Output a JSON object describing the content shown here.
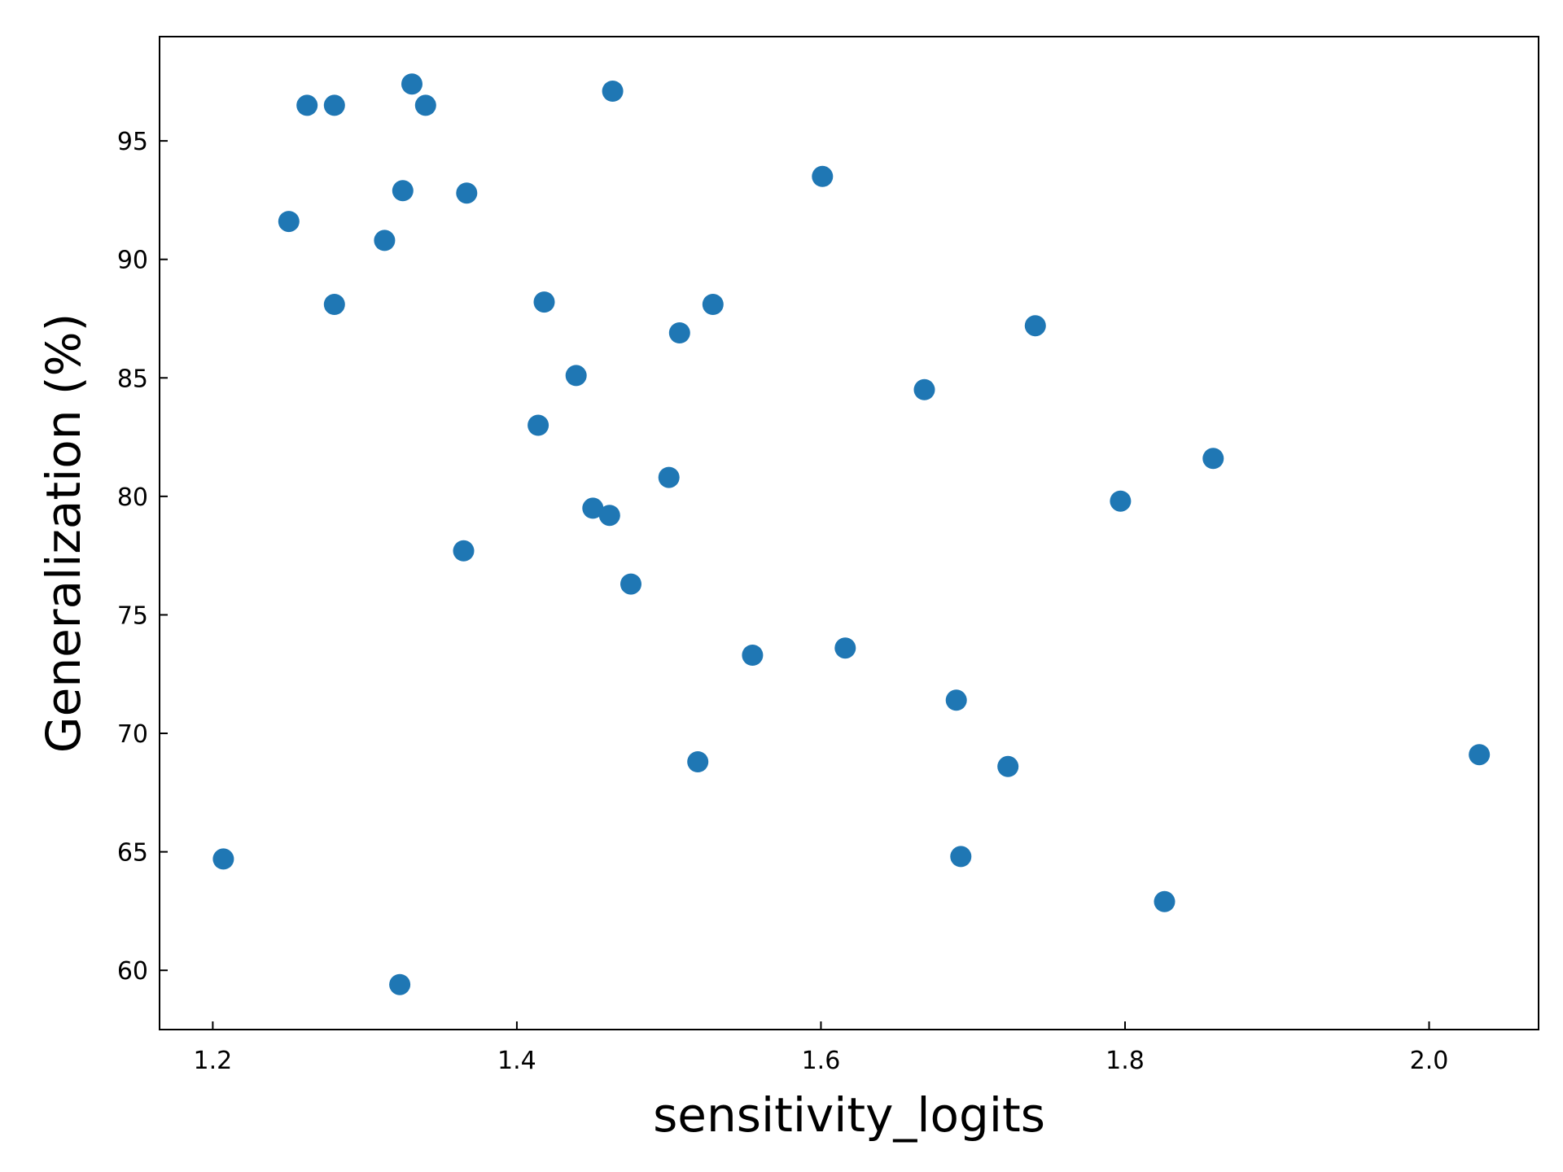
{
  "chart_data": {
    "type": "scatter",
    "xlabel": "sensitivity_logits",
    "ylabel": "Generalization (%)",
    "xlim": [
      1.165,
      2.072
    ],
    "ylim": [
      57.5,
      99.4
    ],
    "xticks": [
      1.2,
      1.4,
      1.6,
      1.8,
      2.0
    ],
    "xtick_labels": [
      "1.2",
      "1.4",
      "1.6",
      "1.8",
      "2.0"
    ],
    "yticks": [
      60,
      65,
      70,
      75,
      80,
      85,
      90,
      95
    ],
    "ytick_labels": [
      "60",
      "65",
      "70",
      "75",
      "80",
      "85",
      "90",
      "95"
    ],
    "grid": false,
    "marker_color": "#1f77b4",
    "series": [
      {
        "x": [
          1.207,
          1.25,
          1.262,
          1.28,
          1.28,
          1.313,
          1.323,
          1.325,
          1.331,
          1.34,
          1.365,
          1.367,
          1.414,
          1.418,
          1.439,
          1.45,
          1.461,
          1.463,
          1.475,
          1.5,
          1.507,
          1.519,
          1.529,
          1.555,
          1.601,
          1.616,
          1.668,
          1.689,
          1.692,
          1.723,
          1.741,
          1.797,
          1.826,
          1.858,
          2.033
        ],
        "y": [
          64.7,
          91.6,
          96.5,
          96.5,
          88.1,
          90.8,
          59.4,
          92.9,
          97.4,
          96.5,
          77.7,
          92.8,
          83.0,
          88.2,
          85.1,
          79.5,
          79.2,
          97.1,
          76.3,
          80.8,
          86.9,
          68.8,
          88.1,
          73.3,
          93.5,
          73.6,
          84.5,
          71.4,
          64.8,
          68.6,
          87.2,
          79.8,
          62.9,
          81.6,
          69.1
        ]
      }
    ]
  }
}
